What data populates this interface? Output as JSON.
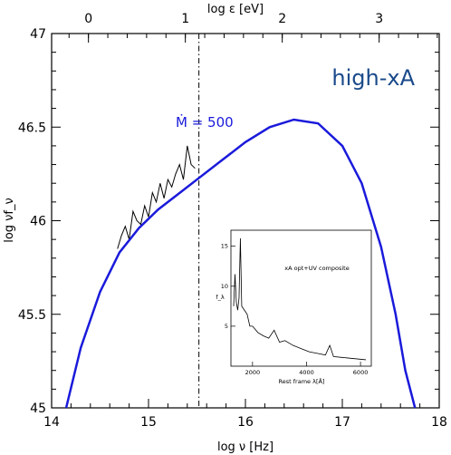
{
  "chart_data": {
    "type": "line",
    "title": "high-xA",
    "title_color": "#1a4a8a",
    "xlabel": "log ν [Hz]",
    "ylabel": "log νf_ν",
    "top_xlabel": "log ε [eV]",
    "xlim": [
      14,
      18
    ],
    "ylim": [
      45,
      47
    ],
    "x_ticks": [
      "14",
      "15",
      "16",
      "17",
      "18"
    ],
    "y_ticks": [
      "45",
      "45.5",
      "46",
      "46.5",
      "47"
    ],
    "top_ticks": [
      "0",
      "1",
      "2",
      "3"
    ],
    "top_tick_positions": [
      14.38,
      15.38,
      16.38,
      17.38
    ],
    "vline_x": 15.52,
    "series": [
      {
        "name": "Ṁ = 500",
        "color": "#1a1adb",
        "x": [
          14.15,
          14.3,
          14.5,
          14.7,
          14.9,
          15.1,
          15.3,
          15.5,
          15.75,
          16.0,
          16.25,
          16.5,
          16.75,
          17.0,
          17.2,
          17.4,
          17.55,
          17.65,
          17.75
        ],
        "values": [
          45.0,
          45.32,
          45.62,
          45.83,
          45.96,
          46.06,
          46.14,
          46.22,
          46.32,
          46.42,
          46.5,
          46.54,
          46.52,
          46.4,
          46.2,
          45.86,
          45.5,
          45.2,
          44.95
        ]
      },
      {
        "name": "",
        "color": "#000000",
        "x": [
          14.68,
          14.72,
          14.76,
          14.8,
          14.84,
          14.88,
          14.92,
          14.96,
          15.0,
          15.04,
          15.08,
          15.12,
          15.16,
          15.2,
          15.24,
          15.28,
          15.32,
          15.36,
          15.4,
          15.44,
          15.48
        ],
        "values": [
          45.85,
          45.92,
          45.97,
          45.9,
          46.05,
          46.0,
          45.98,
          46.08,
          46.02,
          46.15,
          46.1,
          46.2,
          46.12,
          46.22,
          46.18,
          46.25,
          46.3,
          46.22,
          46.4,
          46.3,
          46.28
        ]
      }
    ],
    "inset": {
      "type": "line",
      "annotation": "xA opt+UV composite",
      "xlabel": "Rest frame λ[Å]",
      "ylabel": "f_λ",
      "x_ticks": [
        "2000",
        "4000",
        "6000"
      ],
      "y_ticks": [
        "5",
        "10",
        "15"
      ],
      "xlim": [
        1200,
        6400
      ],
      "ylim": [
        0,
        17
      ],
      "x": [
        1300,
        1350,
        1400,
        1450,
        1500,
        1550,
        1600,
        1700,
        1800,
        1900,
        2000,
        2200,
        2400,
        2600,
        2800,
        3000,
        3200,
        3500,
        3800,
        4100,
        4400,
        4700,
        4861,
        5000,
        5300,
        5600,
        5900,
        6200
      ],
      "values": [
        7.5,
        11.5,
        8.0,
        7.0,
        8.5,
        16.0,
        7.5,
        7.0,
        6.5,
        5.0,
        5.0,
        4.2,
        3.8,
        3.5,
        4.5,
        3.0,
        3.2,
        2.6,
        2.2,
        1.8,
        1.6,
        1.4,
        2.6,
        1.2,
        1.1,
        1.0,
        0.9,
        0.8
      ]
    }
  }
}
